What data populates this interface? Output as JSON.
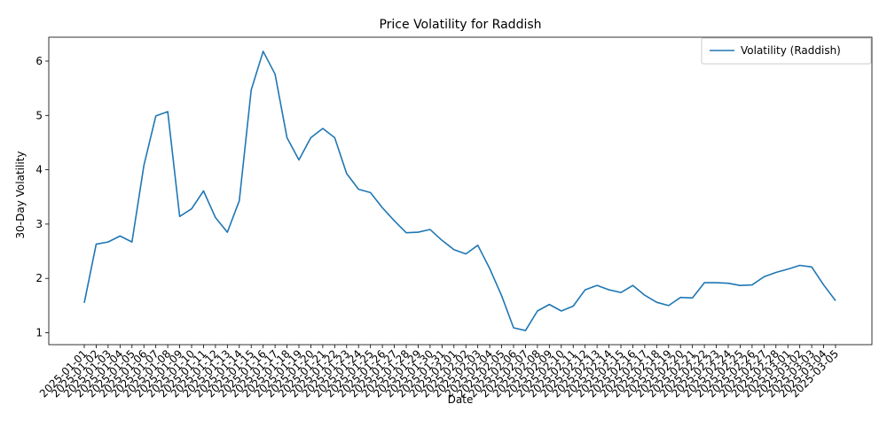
{
  "chart_data": {
    "type": "line",
    "title": "Price Volatility for Raddish",
    "xlabel": "Date",
    "ylabel": "30-Day Volatility",
    "ylim": [
      0.78,
      6.44
    ],
    "yticks": [
      1,
      2,
      3,
      4,
      5,
      6
    ],
    "grid": false,
    "legend_position": "top-right",
    "line_color": "#1f77b4",
    "categories": [
      "2025-01-01",
      "2025-01-02",
      "2025-01-03",
      "2025-01-04",
      "2025-01-05",
      "2025-01-06",
      "2025-01-07",
      "2025-01-08",
      "2025-01-09",
      "2025-01-10",
      "2025-01-11",
      "2025-01-12",
      "2025-01-13",
      "2025-01-14",
      "2025-01-15",
      "2025-01-16",
      "2025-01-17",
      "2025-01-18",
      "2025-01-19",
      "2025-01-20",
      "2025-01-21",
      "2025-01-22",
      "2025-01-23",
      "2025-01-24",
      "2025-01-25",
      "2025-01-26",
      "2025-01-27",
      "2025-01-28",
      "2025-01-29",
      "2025-01-30",
      "2025-01-31",
      "2025-02-01",
      "2025-02-02",
      "2025-02-03",
      "2025-02-04",
      "2025-02-05",
      "2025-02-06",
      "2025-02-07",
      "2025-02-08",
      "2025-02-09",
      "2025-02-10",
      "2025-02-11",
      "2025-02-12",
      "2025-02-13",
      "2025-02-14",
      "2025-02-15",
      "2025-02-16",
      "2025-02-17",
      "2025-02-18",
      "2025-02-19",
      "2025-02-20",
      "2025-02-21",
      "2025-02-22",
      "2025-02-23",
      "2025-02-24",
      "2025-02-25",
      "2025-02-26",
      "2025-02-27",
      "2025-02-28",
      "2025-03-01",
      "2025-03-02",
      "2025-03-03",
      "2025-03-04",
      "2025-03-05"
    ],
    "series": [
      {
        "name": "Volatility (Raddish)",
        "values": [
          1.55,
          2.63,
          2.67,
          2.78,
          2.67,
          4.08,
          4.99,
          5.07,
          3.14,
          3.28,
          3.61,
          3.12,
          2.85,
          3.43,
          5.47,
          6.18,
          5.76,
          4.59,
          4.18,
          4.59,
          4.76,
          4.59,
          3.93,
          3.64,
          3.58,
          3.3,
          3.06,
          2.84,
          2.85,
          2.9,
          2.7,
          2.53,
          2.45,
          2.61,
          2.18,
          1.68,
          1.09,
          1.04,
          1.4,
          1.52,
          1.4,
          1.49,
          1.79,
          1.87,
          1.79,
          1.74,
          1.87,
          1.69,
          1.56,
          1.5,
          1.65,
          1.64,
          1.92,
          1.92,
          1.91,
          1.87,
          1.88,
          2.03,
          2.11,
          2.17,
          2.24,
          2.21,
          1.88,
          1.59
        ]
      }
    ]
  }
}
